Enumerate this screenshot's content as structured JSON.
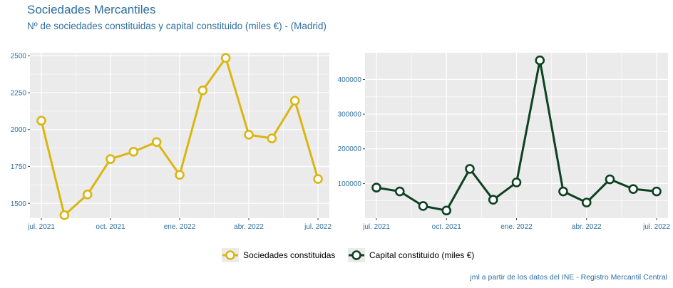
{
  "title": "Sociedades Mercantiles",
  "subtitle": "Nº de sociedades constituidas y capital constituido (miles €) - (Madrid)",
  "caption": "jml a partir de los datos del INE - Registro Mercantil Central",
  "colors": {
    "panel_bg": "#ebebeb",
    "grid": "#ffffff",
    "text": "#2e6f9e"
  },
  "chart_data": [
    {
      "type": "line",
      "x": [
        "jul. 2021",
        "ago. 2021",
        "sep. 2021",
        "oct. 2021",
        "nov. 2021",
        "dic. 2021",
        "ene. 2022",
        "feb. 2022",
        "mar. 2022",
        "abr. 2022",
        "may. 2022",
        "jun. 2022",
        "jul. 2022"
      ],
      "x_tick_labels": [
        "jul. 2021",
        "oct. 2021",
        "ene. 2022",
        "abr. 2022",
        "jul. 2022"
      ],
      "x_tick_index": [
        0,
        3,
        6,
        9,
        12
      ],
      "series": [
        {
          "name": "Sociedades constituidas",
          "color": "#dab613",
          "values": [
            2060,
            1420,
            1560,
            1800,
            1850,
            1915,
            1693,
            2265,
            2485,
            1965,
            1940,
            2195,
            1665
          ]
        }
      ],
      "ylim": [
        1400,
        2520
      ],
      "y_ticks": [
        1500,
        1750,
        2000,
        2250,
        2500
      ],
      "y_tick_labels": [
        "1500",
        "1750",
        "2000",
        "2250",
        "2500"
      ],
      "grid": true
    },
    {
      "type": "line",
      "x": [
        "jul. 2021",
        "ago. 2021",
        "sep. 2021",
        "oct. 2021",
        "nov. 2021",
        "dic. 2021",
        "ene. 2022",
        "feb. 2022",
        "mar. 2022",
        "abr. 2022",
        "may. 2022",
        "jun. 2022",
        "jul. 2022"
      ],
      "x_tick_labels": [
        "jul. 2021",
        "oct. 2021",
        "ene. 2022",
        "abr. 2022",
        "jul. 2022"
      ],
      "x_tick_index": [
        0,
        3,
        6,
        9,
        12
      ],
      "series": [
        {
          "name": "Capital constituido (miles €)",
          "color": "#0d4121",
          "values": [
            88000,
            77000,
            35000,
            22000,
            142000,
            53000,
            103000,
            455000,
            77000,
            45000,
            112000,
            84000,
            77000
          ]
        }
      ],
      "ylim": [
        0,
        477000
      ],
      "y_ticks": [
        100000,
        200000,
        300000,
        400000
      ],
      "y_tick_labels": [
        "100000",
        "200000",
        "300000",
        "400000"
      ],
      "grid": true
    }
  ],
  "legend": {
    "placement": "bottom"
  }
}
